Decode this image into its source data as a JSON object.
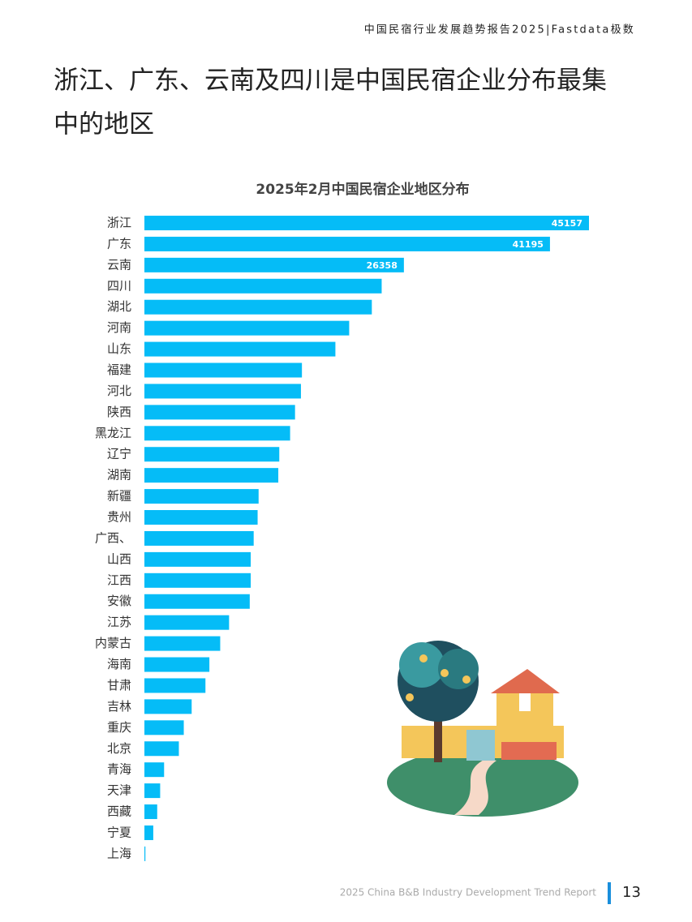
{
  "header": {
    "text": "中国民宿行业发展趋势报告2025|Fastdata极数"
  },
  "heading": {
    "lines": [
      "浙江、广东、云南及四川是中国民宿企业分布最集",
      "中的地区"
    ]
  },
  "chart_data": {
    "type": "hbar",
    "title": "2025年2月中国民宿企业地区分布",
    "color": "#05bcf7",
    "categories": [
      "浙江",
      "广东",
      "云南",
      "四川",
      "湖北",
      "河南",
      "山东",
      "福建",
      "河北",
      "陕西",
      "黑龙江",
      "辽宁",
      "湖南",
      "新疆",
      "贵州",
      "广西、",
      "山西",
      "江西",
      "安徽",
      "江苏",
      "内蒙古",
      "海南",
      "甘肃",
      "吉林",
      "重庆",
      "北京",
      "青海",
      "天津",
      "西藏",
      "宁夏",
      "上海"
    ],
    "values": [
      45157,
      41195,
      26358,
      24100,
      23100,
      20800,
      19400,
      16000,
      15900,
      15300,
      14800,
      13700,
      13600,
      11600,
      11500,
      11100,
      10800,
      10800,
      10700,
      8600,
      7700,
      6600,
      6200,
      4800,
      4000,
      3500,
      2000,
      1600,
      1300,
      900,
      100
    ],
    "value_labels": [
      "45157",
      "41195",
      "26358",
      null,
      null,
      null,
      null,
      null,
      null,
      null,
      null,
      null,
      null,
      null,
      null,
      null,
      null,
      null,
      null,
      null,
      null,
      null,
      null,
      null,
      null,
      null,
      null,
      null,
      null,
      null,
      null
    ]
  },
  "footer": {
    "text": "2025 China B&B Industry Development Trend Report",
    "page": "13"
  }
}
